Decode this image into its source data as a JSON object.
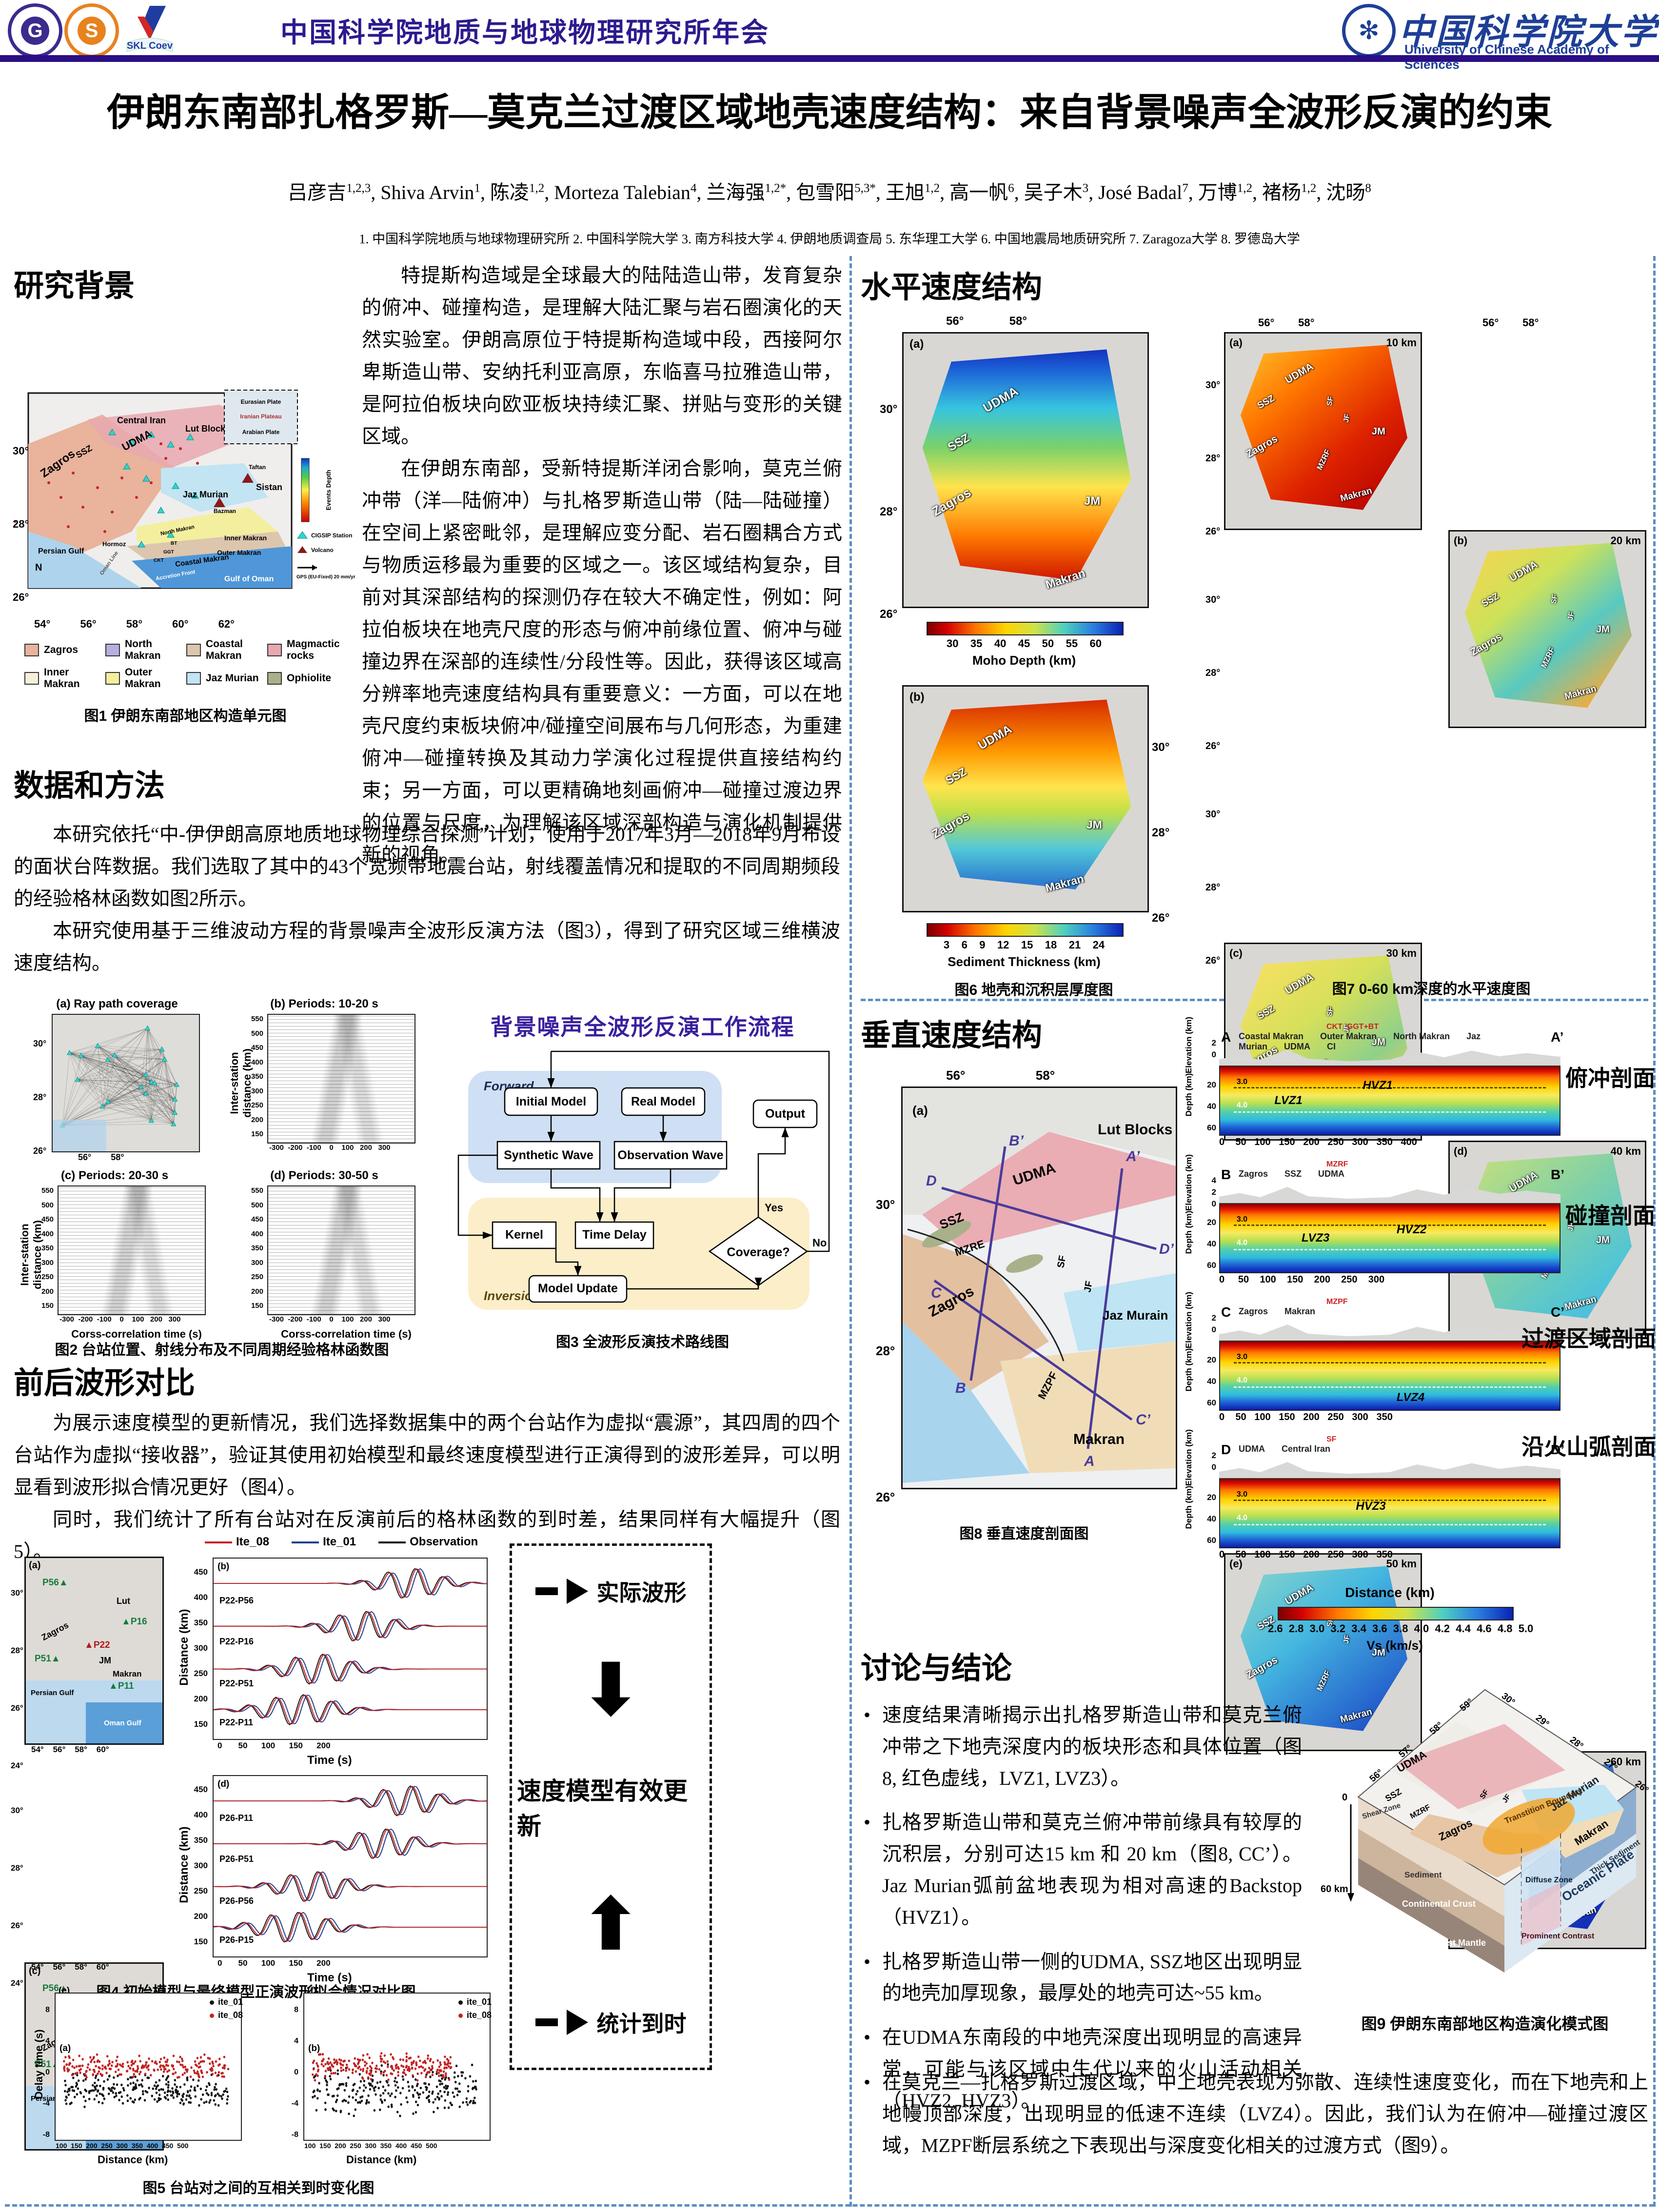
{
  "header": {
    "conference_title": "中国科学院地质与地球物理研究所年会",
    "logo_iggcas": "中国科学院地质与地球物理研究所",
    "logo_sustech": "南方科技大学",
    "logo_skl": "SKL Coev",
    "ucas_cn": "中国科学院大学",
    "ucas_en": "University of Chinese Academy of Sciences"
  },
  "title": "伊朗东南部扎格罗斯—莫克兰过渡区域地壳速度结构：来自背景噪声全波形反演的约束",
  "authors": [
    {
      "name": "吕彦吉",
      "sup": "1,2,3"
    },
    {
      "name": "Shiva Arvin",
      "sup": "1"
    },
    {
      "name": "陈凌",
      "sup": "1,2"
    },
    {
      "name": "Morteza Talebian",
      "sup": "4"
    },
    {
      "name": "兰海强",
      "sup": "1,2*"
    },
    {
      "name": "包雪阳",
      "sup": "5,3*"
    },
    {
      "name": "王旭",
      "sup": "1,2"
    },
    {
      "name": "高一帆",
      "sup": "6"
    },
    {
      "name": "吴子木",
      "sup": "3"
    },
    {
      "name": "José Badal",
      "sup": "7"
    },
    {
      "name": "万博",
      "sup": "1,2"
    },
    {
      "name": "褚杨",
      "sup": "1,2"
    },
    {
      "name": "沈旸",
      "sup": "8"
    }
  ],
  "affiliations": "1. 中国科学院地质与地球物理研究所   2. 中国科学院大学   3. 南方科技大学   4. 伊朗地质调查局   5. 东华理工大学   6. 中国地震局地质研究所   7. Zaragoza大学   8. 罗德岛大学",
  "background": {
    "title": "研究背景",
    "para1": "特提斯构造域是全球最大的陆陆造山带，发育复杂的俯冲、碰撞构造，是理解大陆汇聚与岩石圈演化的天然实验室。伊朗高原位于特提斯构造域中段，西接阿尔卑斯造山带、安纳托利亚高原，东临喜马拉雅造山带，是阿拉伯板块向欧亚板块持续汇聚、拼贴与变形的关键区域。",
    "para2": "在伊朗东南部，受新特提斯洋闭合影响，莫克兰俯冲带（洋—陆俯冲）与扎格罗斯造山带（陆—陆碰撞）在空间上紧密毗邻，是理解应变分配、岩石圈耦合方式与物质运移最为重要的区域之一。该区域结构复杂，目前对其深部结构的探测仍存在较大不确定性，例如：阿拉伯板块在地壳尺度的形态与俯冲前缘位置、俯冲与碰撞边界在深部的连续性/分段性等。因此，获得该区域高分辨率地壳速度结构具有重要意义：一方面，可以在地壳尺度约束板块俯冲/碰撞空间展布与几何形态，为重建俯冲—碰撞转换及其动力学演化过程提供直接结构约束；另一方面，可以更精确地刻画俯冲—碰撞过渡边界的位置与尺度，为理解该区域深部构造与演化机制提供新的视角。"
  },
  "methods": {
    "title": "数据和方法",
    "para1": "本研究依托“中-伊伊朗高原地质地球物理综合探测”计划，使用于2017年3月—2018年9月布设的面状台阵数据。我们选取了其中的43个宽频带地震台站，射线覆盖情况和提取的不同周期频段的经验格林函数如图2所示。",
    "para2": "本研究使用基于三维波动方程的背景噪声全波形反演方法（图3），得到了研究区域三维横波速度结构。"
  },
  "waveform_cmp": {
    "title": "前后波形对比",
    "para1": "为展示速度模型的更新情况，我们选择数据集中的两个台站作为虚拟“震源”，其四周的四个台站作为虚拟“接收器”，验证其使用初始模型和最终速度模型进行正演得到的波形差异，可以明显看到波形拟合情况更好（图4）。",
    "para2": "同时，我们统计了所有台站对在反演前后的格林函数的到时差，结果同样有大幅提升（图5）。"
  },
  "horizontal": {
    "title": "水平速度结构"
  },
  "vertical": {
    "title": "垂直速度结构"
  },
  "discussion": {
    "title": "讨论与结论",
    "bullets": [
      "速度结果清晰揭示出扎格罗斯造山带和莫克兰俯冲带之下地壳深度内的板块形态和具体位置（图8, 红色虚线，LVZ1, LVZ3）。",
      "扎格罗斯造山带和莫克兰俯冲带前缘具有较厚的沉积层，分别可达15 km 和 20 km（图8, CC’）。Jaz Murian弧前盆地表现为相对高速的Backstop（HVZ1）。",
      "扎格罗斯造山带一侧的UDMA, SSZ地区出现明显的地壳加厚现象，最厚处的地壳可达~55 km。",
      "在UDMA东南段的中地壳深度出现明显的高速异常，可能与该区域中生代以来的火山活动相关（HVZ2, HVZ3）。",
      "在莫克兰—扎格罗斯过渡区域，中上地壳表现为弥散、连续性速度变化，而在下地壳和上地幔顶部深度，出现明显的低速不连续（LVZ4）。因此，我们认为在俯冲—碰撞过渡区域，MZPF断层系统之下表现出与深度变化相关的过渡方式（图9）。"
    ]
  },
  "update_box": {
    "item1": "实际波形",
    "item2": "速度模型有效更新",
    "item3": "统计到时"
  },
  "fig1": {
    "caption": "图1 伊朗东南部地区构造单元图",
    "xticks": "54°          56°          58°          60°          62°",
    "yticks": "30°\n28°\n26°",
    "labels": {
      "central_iran": "Central Iran",
      "lut": "Lut Block",
      "udma": "UDMA",
      "ssz": "SSZ",
      "mzrf": "MZRF",
      "zagros": "Zagros",
      "jaz": "Jaz Murian",
      "sistan": "Sistan",
      "taftan": "Taftan",
      "bazman": "Bazman",
      "hormoz": "Hormoz",
      "persian_gulf": "Persian Gulf",
      "north_makran": "North Makran",
      "inner_makran": "Inner Makran",
      "outer_makran": "Outer Makran",
      "coastal_makran": "Coastal Makran",
      "gulf_oman": "Gulf of Oman",
      "oman_line": "Oman Line",
      "accretion": "Accretion Front",
      "n": "N",
      "bt": "BT",
      "ggt": "GGT",
      "ckt": "CKT"
    },
    "inset": {
      "l1": "Eurasian Plate",
      "l2": "Iranian Plateau",
      "l3": "Arabian Plate"
    },
    "colorbar_label": "Events Depth",
    "station_legend": "CIGSIP Station",
    "volcano_legend": "Volcano",
    "gps_legend": "GPS (EU-Fixed) 20 mm/yr",
    "legend": [
      {
        "label": "Zagros",
        "color": "#e9b39c"
      },
      {
        "label": "North Makran",
        "color": "#b9aedd"
      },
      {
        "label": "Coastal Makran",
        "color": "#dcc6ae"
      },
      {
        "label": "Magmactic rocks",
        "color": "#e8a8b0"
      },
      {
        "label": "Inner Makran",
        "color": "#f7efd8"
      },
      {
        "label": "Outer Makran",
        "color": "#f3ef9e"
      },
      {
        "label": "Jaz Murian",
        "color": "#c2e4f3"
      },
      {
        "label": "Ophiolite",
        "color": "#a9b18b"
      }
    ]
  },
  "fig2": {
    "caption": "图2 台站位置、射线分布及不同周期经验格林函数图",
    "pa": "(a) Ray path coverage",
    "pb": "(b) Periods: 10-20 s",
    "pc": "(c) Periods: 20-30 s",
    "pd": "(d) Periods: 30-50 s",
    "ylabel": "Inter-station distance (km)",
    "xlabel": "Corss-correlation time (s)",
    "yticks": "550\n500\n450\n400\n350\n300\n250\n200\n150",
    "xticks": "-300  -200  -100    0    100   200   300",
    "map_xticks": "56°        58°",
    "map_yticks": "30°\n28°\n26°"
  },
  "fig3": {
    "caption": "图3 全波形反演技术路线图",
    "flow_title": "背景噪声全波形反演工作流程",
    "forward": "Forward",
    "inversion": "Inversion",
    "initial": "Initial Model",
    "real": "Real Model",
    "synthetic": "Synthetic Wave",
    "observation": "Observation Wave",
    "output": "Output",
    "kernel": "Kernel",
    "delay": "Time Delay",
    "update": "Model Update",
    "coverage": "Coverage?",
    "yes": "Yes",
    "no": "No"
  },
  "fig4": {
    "caption": "图4 初始模型与最终模型正演波形拟合情况对比图",
    "legend": [
      {
        "label": "Ite_08",
        "color": "#c32222"
      },
      {
        "label": "Ite_01",
        "color": "#1f3d8f"
      },
      {
        "label": "Observation",
        "color": "#111111"
      }
    ],
    "pb_letter": "(b)",
    "pd_letter": "(d)",
    "traces_b": [
      "P22-P56",
      "P22-P16",
      "P22-P51",
      "P22-P11"
    ],
    "traces_d": [
      "P26-P11",
      "P26-P51",
      "P26-P56",
      "P26-P15"
    ],
    "ylabel": "Distance (km)",
    "xlabel": "Time (s)",
    "yticks": "450\n400\n350\n300\n250\n200\n150",
    "xticks": "0       50      100      150      200",
    "map_a": {
      "letter": "(a)",
      "s1": "P56",
      "s2": "P16",
      "s3": "P22",
      "s4": "P51",
      "s5": "P11"
    },
    "map_c": {
      "letter": "(c)",
      "s1": "P56",
      "s2": "P26",
      "s3": "P15",
      "s4": "P51",
      "s5": "P11"
    },
    "map_labels": {
      "lut": "Lut",
      "jm": "JM",
      "zagros": "Zagros",
      "makran": "Makran",
      "pg": "Persian Gulf",
      "og": "Oman Gulf"
    },
    "map_xticks": "54°    56°    58°    60°",
    "map_yticks": "30°\n28°\n26°\n24°"
  },
  "fig5": {
    "caption": "图5 台站对之间的互相关到时变化图",
    "p1_top": "(e)",
    "p1_in": "(a)",
    "p2_top": "(f)",
    "p2_in": "(b)",
    "leg1": "ite_01",
    "leg2": "ite_08",
    "ylabel": "Delay time (s)",
    "xlabel": "Distance (km)",
    "yticks": "8\n4\n0\n-4\n-8",
    "xticks": "100  150  200  250  300  350  400  450  500"
  },
  "fig6": {
    "caption": "图6 地壳和沉积层厚度图",
    "pa_letter": "(a)",
    "pb_letter": "(b)",
    "cba_label": "Moho Depth (km)",
    "cba_ticks": "30    35    40    45    50    55    60",
    "cbb_label": "Sediment Thickness (km)",
    "cbb_ticks": "3    6    9    12    15    18    21    24",
    "lon_ticks": "56°              58°",
    "lat_ticks": "30°\n28°\n26°",
    "labels": {
      "udma": "UDMA",
      "ssz": "SSZ",
      "zagros": "Zagros",
      "jm": "JM",
      "makran": "Makran"
    }
  },
  "fig7": {
    "caption": "图7 0-60 km深度的水平速度图",
    "letters": [
      "(a)",
      "(b)",
      "(c)",
      "(d)",
      "(e)",
      "(f)"
    ],
    "depths": [
      "10 km",
      "20 km",
      "30 km",
      "40 km",
      "50 km",
      "60 km"
    ],
    "lon_ticks": "56°        58°",
    "lat_ticks": "30°\n28°\n26°",
    "labels": {
      "udma": "UDMA",
      "ssz": "SSZ",
      "zagros": "Zagros",
      "jm": "JM",
      "makran": "Makran",
      "mzrf": "MZRF",
      "sf": "SF",
      "jf": "JF"
    }
  },
  "fig8": {
    "caption": "图8 垂直速度剖面图",
    "map": {
      "letter": "(a)",
      "lon_ticks": "56°                    58°",
      "lat_ticks": "30°\n28°\n26°",
      "lut": "Lut Blocks",
      "jaz": "Jaz Murain",
      "udma": "UDMA",
      "ssz": "SSZ",
      "mzre": "MZRE",
      "zagros": "Zagros",
      "sf": "SF",
      "jf": "JF",
      "mzpf": "MZPF",
      "makran": "Makran",
      "eB2": "B’",
      "eD": "D",
      "eA2": "A’",
      "eD2": "D’",
      "eC": "C",
      "eB": "B",
      "eC2": "C’",
      "eA": "A"
    },
    "elev_label": "Elevation (km)",
    "depth_label": "Depth (km)",
    "xlabel": "Distance (km)",
    "cb_ticks": "2.6  2.8  3.0  3.2  3.4  3.6  3.8  4.0  4.2  4.4  4.6  4.8  5.0",
    "cb_label": "Vs (km/s)",
    "c30": "3.0",
    "c40": "4.0",
    "sections": [
      {
        "id": "A",
        "end": "A’",
        "cn": "俯冲剖面",
        "tl1": "Coastal Makran",
        "tl2": "Outer Makran",
        "tl3": "North Makran",
        "tl4": "Jaz Murian",
        "tl5": "UDMA",
        "tl6": "CI",
        "fault": "CKT",
        "fault2": "GGT+BT",
        "an1": "HVZ1",
        "an2": "LVZ1",
        "elev": "2\n0",
        "xticks": "0    50   100   150   200   250   300   350   400"
      },
      {
        "id": "B",
        "end": "B’",
        "cn": "碰撞剖面",
        "tl1": "Zagros",
        "tl2": "SSZ",
        "tl3": "UDMA",
        "tl4": "",
        "tl5": "",
        "tl6": "",
        "fault": "MZRF",
        "fault2": "",
        "an1": "LVZ3",
        "an2": "HVZ2",
        "elev": "4\n2\n0",
        "xticks": "0     50    100    150    200    250    300"
      },
      {
        "id": "C",
        "end": "C’",
        "cn": "过渡区域剖面",
        "tl1": "Zagros",
        "tl2": "Makran",
        "tl3": "",
        "tl4": "",
        "tl5": "",
        "tl6": "",
        "fault": "MZPF",
        "fault2": "",
        "an1": "LVZ4",
        "an2": "",
        "elev": "2\n0",
        "xticks": "0    50   100   150   200   250   300   350"
      },
      {
        "id": "D",
        "end": "D’",
        "cn": "沿火山弧剖面",
        "tl1": "UDMA",
        "tl2": "Central Iran",
        "tl3": "",
        "tl4": "",
        "tl5": "",
        "tl6": "",
        "fault": "SF",
        "fault2": "",
        "an1": "HVZ3",
        "an2": "",
        "elev": "2\n0",
        "xticks": "0    50   100   150   200   250   300   350"
      }
    ],
    "depth_ticks": "20\n40\n60"
  },
  "fig9": {
    "caption": "图9 伊朗东南部地区构造演化模式图",
    "labels": {
      "udma": "UDMA",
      "ssz": "SSZ",
      "mzrf": "MZRF",
      "zagros": "Zagros",
      "sf": "SF",
      "jf": "JF",
      "jaz": "Jaz Murian",
      "makran": "Makran",
      "thick_sed": "Thick Sediment",
      "oceanic": "Oceanic Plate",
      "transtition": "Transtition Boundary",
      "diffuse": "Diffuse Zone",
      "prominent": "Prominent Contrast",
      "shear": "Shear Zone",
      "sediment": "Sediment",
      "crust": "Continental Crust",
      "mantle": "Uppermost Mantle",
      "d0": "0",
      "d60": "60 km"
    },
    "lon_ticks": [
      "56°",
      "57°",
      "58°",
      "59°"
    ],
    "lat_ticks": [
      "30°",
      "29°",
      "28°",
      "27°",
      "26°"
    ]
  },
  "colors": {
    "accent_purple": "#2a0e85",
    "dashed_blue": "#5b8fc0",
    "ite08_red": "#c32222",
    "ite01_blue": "#1f3d8f",
    "flow_forward_bg": "#cfe0f4",
    "flow_inversion_bg": "#fdeeca"
  }
}
